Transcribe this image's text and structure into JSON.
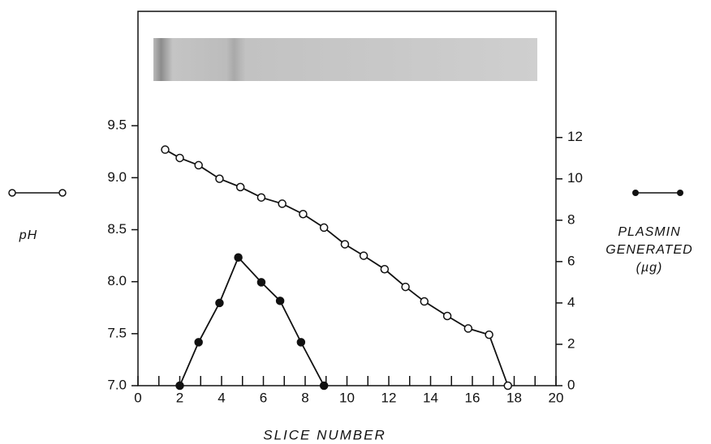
{
  "chart_data": {
    "type": "line",
    "x_label": "SLICE NUMBER",
    "xlim": [
      0,
      20
    ],
    "xticks": [
      0,
      2,
      4,
      6,
      8,
      10,
      12,
      14,
      16,
      18,
      20
    ],
    "ylim": [
      7.0,
      10.6
    ],
    "yticks": [
      {
        "value": 7.0,
        "label": "7.0"
      },
      {
        "value": 7.5,
        "label": "7.5"
      },
      {
        "value": 8.0,
        "label": "8.0"
      },
      {
        "value": 8.5,
        "label": "8.5"
      },
      {
        "value": 9.0,
        "label": "9.0"
      },
      {
        "value": 9.5,
        "label": "9.5"
      }
    ],
    "y2lim": [
      0,
      18.1
    ],
    "y2ticks": [
      0,
      2,
      4,
      6,
      8,
      10,
      12
    ],
    "series": [
      {
        "name": "pH",
        "color": "#111111",
        "marker": "open",
        "x": [
          1.3,
          2.0,
          2.9,
          3.9,
          4.9,
          5.9,
          6.9,
          7.9,
          8.9,
          9.9,
          10.8,
          11.8,
          12.8,
          13.7,
          14.8,
          15.8,
          16.8,
          17.7
        ],
        "values": [
          9.27,
          9.19,
          9.12,
          8.99,
          8.91,
          8.81,
          8.75,
          8.65,
          8.52,
          8.36,
          8.25,
          8.12,
          7.95,
          7.81,
          7.67,
          7.55,
          7.49,
          7.0
        ]
      },
      {
        "name": "PLASMIN GENERATED (µg)",
        "color": "#111111",
        "marker": "filled",
        "axis": "y2",
        "x": [
          2.0,
          2.9,
          3.9,
          4.8,
          5.9,
          6.8,
          7.8,
          8.9
        ],
        "values": [
          0,
          2.1,
          4.0,
          6.2,
          5.0,
          4.1,
          2.1,
          0
        ]
      }
    ]
  }
}
